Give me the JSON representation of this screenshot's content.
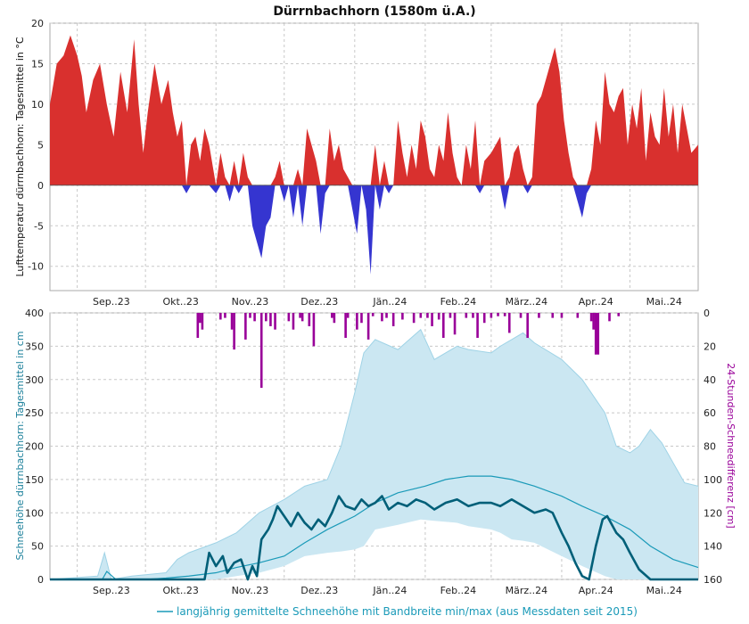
{
  "title": "Dürrnbachhorn (1580m ü.A.)",
  "months": [
    "Sep..23",
    "Okt..23",
    "Nov..23",
    "Dez..23",
    "Jän..24",
    "Feb..24",
    "März..24",
    "Apr..24",
    "Mai..24"
  ],
  "colors": {
    "temp_positive": "#d9302e",
    "temp_negative": "#3535d0",
    "snow_line": "#005f78",
    "band_fill": "#cbe7f2",
    "band_stroke": "#9fd3e6",
    "mean_line": "#1a9ab8",
    "snowdiff_bar": "#990099"
  },
  "chart_data": [
    {
      "type": "area",
      "ylabel": "Lufttemperatur dürrnbachhorn: Tagesmittel in °C",
      "ylim": [
        -13,
        20
      ],
      "yticks": [
        -10,
        -5,
        0,
        5,
        10,
        15,
        20
      ],
      "grid": true,
      "x_start": "2023-08-20",
      "x_end": "2024-05-31",
      "series": [
        {
          "name": "",
          "x": [
            "2023-08-20",
            "2023-08-23",
            "2023-08-26",
            "2023-08-29",
            "2023-09-01",
            "2023-09-03",
            "2023-09-05",
            "2023-09-08",
            "2023-09-11",
            "2023-09-14",
            "2023-09-17",
            "2023-09-20",
            "2023-09-23",
            "2023-09-26",
            "2023-09-28",
            "2023-09-30",
            "2023-10-02",
            "2023-10-05",
            "2023-10-08",
            "2023-10-11",
            "2023-10-13",
            "2023-10-15",
            "2023-10-17",
            "2023-10-19",
            "2023-10-21",
            "2023-10-23",
            "2023-10-25",
            "2023-10-27",
            "2023-10-29",
            "2023-11-01",
            "2023-11-03",
            "2023-11-05",
            "2023-11-07",
            "2023-11-09",
            "2023-11-11",
            "2023-11-13",
            "2023-11-15",
            "2023-11-17",
            "2023-11-19",
            "2023-11-21",
            "2023-11-23",
            "2023-11-25",
            "2023-11-27",
            "2023-11-29",
            "2023-12-01",
            "2023-12-03",
            "2023-12-05",
            "2023-12-07",
            "2023-12-09",
            "2023-12-11",
            "2023-12-13",
            "2023-12-15",
            "2023-12-17",
            "2023-12-19",
            "2023-12-21",
            "2023-12-23",
            "2023-12-25",
            "2023-12-27",
            "2023-12-29",
            "2023-12-31",
            "2024-01-02",
            "2024-01-04",
            "2024-01-06",
            "2024-01-08",
            "2024-01-10",
            "2024-01-12",
            "2024-01-14",
            "2024-01-16",
            "2024-01-18",
            "2024-01-20",
            "2024-01-22",
            "2024-01-24",
            "2024-01-26",
            "2024-01-28",
            "2024-01-30",
            "2024-02-01",
            "2024-02-03",
            "2024-02-05",
            "2024-02-07",
            "2024-02-09",
            "2024-02-11",
            "2024-02-13",
            "2024-02-15",
            "2024-02-17",
            "2024-02-19",
            "2024-02-21",
            "2024-02-23",
            "2024-02-25",
            "2024-02-27",
            "2024-03-01",
            "2024-03-03",
            "2024-03-05",
            "2024-03-07",
            "2024-03-09",
            "2024-03-11",
            "2024-03-13",
            "2024-03-15",
            "2024-03-17",
            "2024-03-19",
            "2024-03-21",
            "2024-03-23",
            "2024-03-25",
            "2024-03-27",
            "2024-03-29",
            "2024-03-31",
            "2024-04-02",
            "2024-04-04",
            "2024-04-06",
            "2024-04-08",
            "2024-04-10",
            "2024-04-12",
            "2024-04-14",
            "2024-04-16",
            "2024-04-18",
            "2024-04-20",
            "2024-04-22",
            "2024-04-24",
            "2024-04-26",
            "2024-04-28",
            "2024-04-30",
            "2024-05-02",
            "2024-05-04",
            "2024-05-06",
            "2024-05-08",
            "2024-05-10",
            "2024-05-12",
            "2024-05-14",
            "2024-05-16",
            "2024-05-18",
            "2024-05-20",
            "2024-05-22",
            "2024-05-24",
            "2024-05-26",
            "2024-05-28",
            "2024-05-31"
          ],
          "values": [
            10,
            15,
            16,
            18.5,
            16,
            13.5,
            9,
            13,
            15,
            10,
            6,
            14,
            9,
            18,
            10,
            4,
            9,
            15,
            10,
            13,
            9,
            6,
            8,
            -1,
            5,
            6,
            3,
            7,
            5,
            -1,
            4,
            1,
            -2,
            3,
            -1,
            4,
            1,
            -5,
            -7,
            -9,
            -5,
            -4,
            1,
            3,
            -2,
            0,
            -4,
            2,
            -5,
            7,
            5,
            3,
            -6,
            -1,
            7,
            3,
            5,
            2,
            1,
            -3,
            -6,
            0,
            -3,
            -11,
            5,
            -3,
            3,
            -1,
            0,
            8,
            4,
            1,
            5,
            2,
            8,
            6,
            2,
            1,
            5,
            3,
            9,
            4,
            1,
            0,
            5,
            2,
            8,
            -1,
            3,
            4,
            5,
            6,
            -3,
            1,
            4,
            5,
            2,
            -1,
            1,
            10,
            11,
            13,
            15,
            17,
            14,
            8,
            4,
            1,
            -2,
            -4,
            -1,
            2,
            8,
            5,
            14,
            10,
            9,
            11,
            12,
            5,
            10,
            7,
            12,
            3,
            9,
            6,
            5,
            12,
            6,
            10,
            4,
            10,
            7,
            4,
            5
          ]
        }
      ]
    },
    {
      "type": "line",
      "ylabel": "Schneehöhe dürrnbachhorn: Tagesmittel in cm",
      "ylim": [
        0,
        400
      ],
      "yticks": [
        0,
        50,
        100,
        150,
        200,
        250,
        300,
        350,
        400
      ],
      "y2label": "24-Stunden-Schneedifferenz [cm]",
      "y2lim": [
        0,
        160
      ],
      "y2ticks": [
        0,
        20,
        40,
        60,
        80,
        100,
        120,
        140,
        160
      ],
      "grid": true,
      "x_start": "2023-08-20",
      "x_end": "2024-05-31",
      "band": {
        "x": [
          "2023-08-20",
          "2023-09-10",
          "2023-09-13",
          "2023-09-16",
          "2023-09-25",
          "2023-10-10",
          "2023-10-15",
          "2023-10-20",
          "2023-11-01",
          "2023-11-10",
          "2023-11-20",
          "2023-12-01",
          "2023-12-10",
          "2023-12-20",
          "2023-12-26",
          "2024-01-01",
          "2024-01-05",
          "2024-01-10",
          "2024-01-20",
          "2024-01-30",
          "2024-02-05",
          "2024-02-15",
          "2024-02-20",
          "2024-03-01",
          "2024-03-05",
          "2024-03-10",
          "2024-03-15",
          "2024-03-20",
          "2024-04-01",
          "2024-04-10",
          "2024-04-20",
          "2024-04-25",
          "2024-05-01",
          "2024-05-05",
          "2024-05-10",
          "2024-05-15",
          "2024-05-20",
          "2024-05-25",
          "2024-05-31"
        ],
        "min": [
          0,
          0,
          0,
          0,
          0,
          0,
          0,
          0,
          0,
          5,
          10,
          20,
          35,
          40,
          42,
          45,
          50,
          75,
          82,
          90,
          88,
          85,
          80,
          75,
          70,
          60,
          58,
          55,
          35,
          20,
          5,
          0,
          0,
          0,
          0,
          0,
          0,
          0,
          0
        ],
        "max": [
          0,
          5,
          40,
          0,
          5,
          10,
          30,
          40,
          55,
          70,
          100,
          120,
          140,
          150,
          200,
          280,
          340,
          360,
          345,
          375,
          330,
          350,
          345,
          340,
          350,
          360,
          370,
          355,
          330,
          300,
          250,
          200,
          190,
          200,
          225,
          205,
          175,
          145,
          140
        ]
      },
      "series": [
        {
          "name": "langjährig gemittelte Schneehöhe mit Bandbreite min/max (aus Messdaten seit 2015)",
          "x": [
            "2023-08-20",
            "2023-09-12",
            "2023-09-14",
            "2023-09-18",
            "2023-10-01",
            "2023-10-10",
            "2023-10-20",
            "2023-11-01",
            "2023-11-10",
            "2023-11-20",
            "2023-12-01",
            "2023-12-10",
            "2023-12-20",
            "2024-01-01",
            "2024-01-10",
            "2024-01-20",
            "2024-02-01",
            "2024-02-10",
            "2024-02-20",
            "2024-03-01",
            "2024-03-10",
            "2024-03-20",
            "2024-04-01",
            "2024-04-10",
            "2024-04-20",
            "2024-05-01",
            "2024-05-10",
            "2024-05-20",
            "2024-05-31"
          ],
          "values": [
            0,
            0,
            12,
            0,
            0,
            2,
            5,
            10,
            18,
            25,
            35,
            55,
            75,
            95,
            115,
            130,
            140,
            150,
            155,
            155,
            150,
            140,
            125,
            110,
            95,
            75,
            50,
            30,
            18
          ]
        },
        {
          "name": "",
          "x": [
            "2023-08-20",
            "2023-10-27",
            "2023-10-29",
            "2023-11-01",
            "2023-11-04",
            "2023-11-06",
            "2023-11-09",
            "2023-11-12",
            "2023-11-15",
            "2023-11-17",
            "2023-11-19",
            "2023-11-21",
            "2023-11-24",
            "2023-11-26",
            "2023-11-28",
            "2023-12-01",
            "2023-12-04",
            "2023-12-07",
            "2023-12-10",
            "2023-12-13",
            "2023-12-16",
            "2023-12-19",
            "2023-12-22",
            "2023-12-25",
            "2023-12-28",
            "2024-01-01",
            "2024-01-04",
            "2024-01-07",
            "2024-01-10",
            "2024-01-13",
            "2024-01-16",
            "2024-01-20",
            "2024-01-24",
            "2024-01-28",
            "2024-02-01",
            "2024-02-05",
            "2024-02-10",
            "2024-02-15",
            "2024-02-20",
            "2024-02-25",
            "2024-03-01",
            "2024-03-05",
            "2024-03-10",
            "2024-03-15",
            "2024-03-20",
            "2024-03-25",
            "2024-03-28",
            "2024-04-01",
            "2024-04-04",
            "2024-04-07",
            "2024-04-10",
            "2024-04-13",
            "2024-04-16",
            "2024-04-19",
            "2024-04-21",
            "2024-04-25",
            "2024-04-28",
            "2024-05-01",
            "2024-05-05",
            "2024-05-10",
            "2024-05-20",
            "2024-05-31"
          ],
          "values": [
            0,
            0,
            40,
            20,
            35,
            10,
            25,
            30,
            0,
            20,
            5,
            60,
            75,
            90,
            110,
            95,
            80,
            100,
            85,
            75,
            90,
            80,
            100,
            125,
            110,
            105,
            120,
            110,
            115,
            125,
            105,
            115,
            110,
            120,
            115,
            105,
            115,
            120,
            110,
            115,
            115,
            110,
            120,
            110,
            100,
            105,
            100,
            70,
            50,
            25,
            5,
            0,
            50,
            90,
            95,
            70,
            60,
            40,
            15,
            0,
            0,
            0
          ]
        }
      ],
      "snowdiff": {
        "x": [
          "2023-10-24",
          "2023-10-25",
          "2023-10-26",
          "2023-11-03",
          "2023-11-05",
          "2023-11-08",
          "2023-11-09",
          "2023-11-14",
          "2023-11-16",
          "2023-11-18",
          "2023-11-21",
          "2023-11-23",
          "2023-11-25",
          "2023-11-27",
          "2023-12-03",
          "2023-12-05",
          "2023-12-08",
          "2023-12-09",
          "2023-12-12",
          "2023-12-14",
          "2023-12-22",
          "2023-12-23",
          "2023-12-28",
          "2023-12-29",
          "2024-01-02",
          "2024-01-04",
          "2024-01-07",
          "2024-01-09",
          "2024-01-13",
          "2024-01-15",
          "2024-01-18",
          "2024-01-22",
          "2024-01-27",
          "2024-01-30",
          "2024-02-02",
          "2024-02-04",
          "2024-02-07",
          "2024-02-09",
          "2024-02-12",
          "2024-02-14",
          "2024-02-19",
          "2024-02-22",
          "2024-02-24",
          "2024-02-27",
          "2024-03-01",
          "2024-03-04",
          "2024-03-07",
          "2024-03-09",
          "2024-03-14",
          "2024-03-17",
          "2024-03-22",
          "2024-03-28",
          "2024-04-01",
          "2024-04-08",
          "2024-04-14",
          "2024-04-15",
          "2024-04-16",
          "2024-04-17",
          "2024-04-22",
          "2024-04-26"
        ],
        "values": [
          15,
          6,
          10,
          4,
          3,
          10,
          22,
          16,
          3,
          5,
          45,
          5,
          8,
          10,
          5,
          10,
          3,
          5,
          8,
          20,
          3,
          6,
          15,
          3,
          10,
          6,
          16,
          2,
          5,
          3,
          8,
          4,
          6,
          3,
          3,
          8,
          4,
          15,
          3,
          13,
          3,
          3,
          15,
          6,
          3,
          2,
          2,
          12,
          3,
          15,
          3,
          3,
          3,
          3,
          5,
          10,
          25,
          25,
          5,
          2
        ]
      }
    }
  ],
  "legend": {
    "label": "langjährig gemittelte Schneehöhe mit Bandbreite min/max (aus Messdaten seit 2015)"
  }
}
